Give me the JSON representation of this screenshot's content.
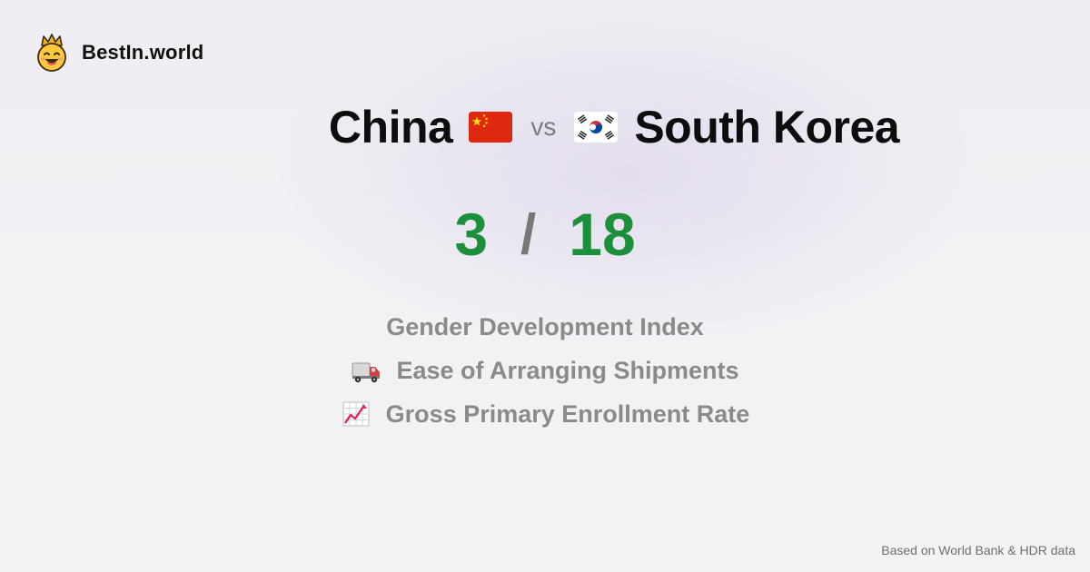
{
  "brand": {
    "name": "BestIn.world",
    "logo_icon": "crowned-smiley-icon"
  },
  "comparison": {
    "left_country": "China",
    "left_flag_icon": "china-flag-icon",
    "vs_label": "vs",
    "right_country": "South Korea",
    "right_flag_icon": "south-korea-flag-icon"
  },
  "score": {
    "left": "3",
    "separator": "/",
    "right": "18"
  },
  "metrics": [
    {
      "icon": "",
      "label": "Gender Development Index"
    },
    {
      "icon": "truck-icon",
      "label": "Ease of Arranging Shipments"
    },
    {
      "icon": "chart-increasing-icon",
      "label": "Gross Primary Enrollment Rate"
    }
  ],
  "footer": {
    "source": "Based on World Bank & HDR data"
  },
  "colors": {
    "score": "#1b8f3a",
    "muted": "#8a8a8a",
    "text": "#0d0d0d"
  }
}
